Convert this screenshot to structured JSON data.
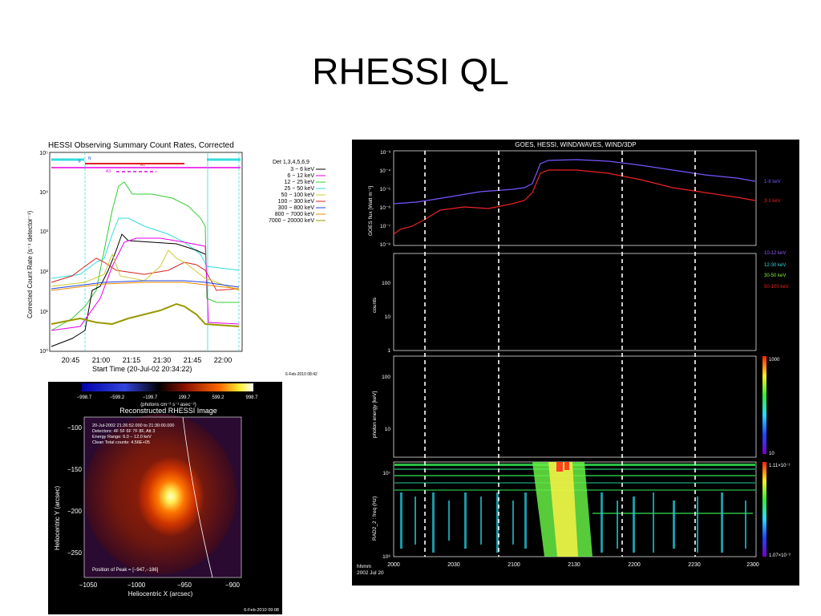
{
  "slide": {
    "title": "RHESSI QL"
  },
  "count_rates": {
    "title": "HESSI Observing Summary Count Rates, Corrected",
    "ylabel": "Corrected Count Rate (s⁻¹ detector⁻¹)",
    "xlabel": "Start Time (20-Jul-02 20:34:22)",
    "yticks": [
      "10⁰",
      "10¹",
      "10²",
      "10³",
      "10⁴",
      "10⁵"
    ],
    "xticks": [
      "20:45",
      "21:00",
      "21:15",
      "21:30",
      "21:45",
      "22:00"
    ],
    "legend_header": "Det 1,3,4,5,6,9",
    "legend": [
      {
        "label": "3 − 6 keV",
        "color": "#000000"
      },
      {
        "label": "6 − 12 keV",
        "color": "#e600e6"
      },
      {
        "label": "12 − 25 keV",
        "color": "#33cc33"
      },
      {
        "label": "25 − 50 keV",
        "color": "#33dddd"
      },
      {
        "label": "50 − 100 keV",
        "color": "#cccc33"
      },
      {
        "label": "100 − 300 keV",
        "color": "#dd2222"
      },
      {
        "label": "300 − 800 keV",
        "color": "#2244dd"
      },
      {
        "label": "800 − 7000 keV",
        "color": "#ee8800"
      },
      {
        "label": "7000 − 20000 keV",
        "color": "#999900"
      }
    ],
    "bar_labels": {
      "f": "F",
      "n": "N",
      "a": "A1",
      "a3": "A3"
    },
    "timestamp": "6-Feb-2010 08:42"
  },
  "goes": {
    "title": "GOES, HESSI, WIND/WAVES, WIND/3DP",
    "panel1_ylabel": "GOES flux [Watt m⁻²]",
    "panel1_yticks": [
      "10⁻³",
      "10⁻⁴",
      "10⁻⁵",
      "10⁻⁶",
      "10⁻⁷",
      "10⁻⁸"
    ],
    "panel1_labels": [
      {
        "text": "1-8 keV",
        "color": "#7755ff"
      },
      {
        "text": "3-1 keV",
        "color": "#ee2222"
      }
    ],
    "panel2_ylabel": "counts",
    "panel2_yticks": [
      "100",
      "10",
      "1"
    ],
    "panel2_labels": [
      {
        "text": "10-12 keV",
        "color": "#9955ff"
      },
      {
        "text": "12-30 keV",
        "color": "#33dddd"
      },
      {
        "text": "30-50 keV",
        "color": "#88ee44"
      },
      {
        "text": "50-100 keV",
        "color": "#ee2222"
      }
    ],
    "panel3_ylabel": "photon energy [keV]",
    "panel3_yticks": [
      "100",
      "10"
    ],
    "panel3_cbar": {
      "top": "1000",
      "bottom": "10"
    },
    "panel4_ylabel": "RAD2_2 : freq (Hz)",
    "panel4_yticks": [
      "10⁷",
      "10⁶"
    ],
    "panel4_cbar": {
      "top": "1.11×10⁻¹",
      "bottom": "1.07×10⁻²"
    },
    "xticks": [
      "2000",
      "2030",
      "2100",
      "2130",
      "2200",
      "2230",
      "2300"
    ],
    "xlabel_line1": "hhmm",
    "xlabel_line2": "2002 Jul 20"
  },
  "image": {
    "colorbar_ticks": [
      "−998.7",
      "−599.2",
      "−199.7",
      "199.7",
      "599.2",
      "998.7"
    ],
    "colorbar_units": "(photons cm⁻² s⁻¹ asec⁻²)",
    "title": "Reconstructed RHESSI Image",
    "info": [
      "20-Jul-2002 21:26:52.000 to 21:30:00.000",
      "Detectors: 4F 5F 6F 7F 8F, Att 3",
      "Energy Range: 6.0 − 12.0 keV",
      "Clean    Total counts: 4.56E+05"
    ],
    "peak": "Position of Peak = [−947,−186]",
    "ylabel": "Heliocentric Y (arcsec)",
    "xlabel": "Heliocentric X (arcsec)",
    "yticks": [
      "−100",
      "−150",
      "−200",
      "−250"
    ],
    "xticks": [
      "−1050",
      "−1000",
      "−950",
      "−900"
    ],
    "timestamp": "6-Feb-2010 09:08"
  }
}
